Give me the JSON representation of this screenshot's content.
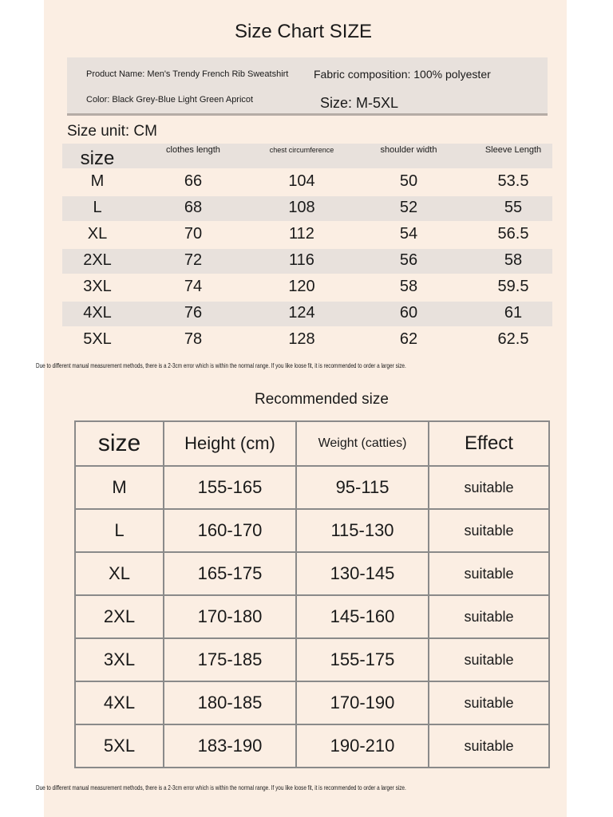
{
  "title": "Size Chart SIZE",
  "info": {
    "product_name": "Product Name: Men's Trendy French Rib Sweatshirt",
    "fabric": "Fabric composition: 100% polyester",
    "color": "Color: Black Grey-Blue Light Green Apricot",
    "size": "Size: M-5XL"
  },
  "unit": "Size unit: CM",
  "size_table": {
    "header": [
      "size",
      "clothes length",
      "chest circumference",
      "shoulder width",
      "Sleeve Length"
    ],
    "rows": [
      [
        "M",
        66,
        104,
        50,
        53.5
      ],
      [
        "L",
        68,
        108,
        52,
        55
      ],
      [
        "XL",
        70,
        112,
        54,
        56.5
      ],
      [
        "2XL",
        72,
        116,
        56,
        58
      ],
      [
        "3XL",
        74,
        120,
        58,
        59.5
      ],
      [
        "4XL",
        76,
        124,
        60,
        61
      ],
      [
        "5XL",
        78,
        128,
        62,
        62.5
      ]
    ]
  },
  "note": "Due to different manual measurement methods, there is a 2-3cm error which is within the normal range. If you like loose fit, it is recommended to order a larger size.",
  "recommended_title": "Recommended size",
  "recommended_table": {
    "header": [
      "size",
      "Height (cm)",
      "Weight (catties)",
      "Effect"
    ],
    "rows": [
      [
        "M",
        "155-165",
        "95-115",
        "suitable"
      ],
      [
        "L",
        "160-170",
        "115-130",
        "suitable"
      ],
      [
        "XL",
        "165-175",
        "130-145",
        "suitable"
      ],
      [
        "2XL",
        "170-180",
        "145-160",
        "suitable"
      ],
      [
        "3XL",
        "175-185",
        "155-175",
        "suitable"
      ],
      [
        "4XL",
        "180-185",
        "170-190",
        "suitable"
      ],
      [
        "5XL",
        "183-190",
        "190-210",
        "suitable"
      ]
    ]
  },
  "footer_note": "Due to different manual measurement methods, there is a 2-3cm error which is within the normal range. If you like loose fit, it is recommended to order a larger size."
}
